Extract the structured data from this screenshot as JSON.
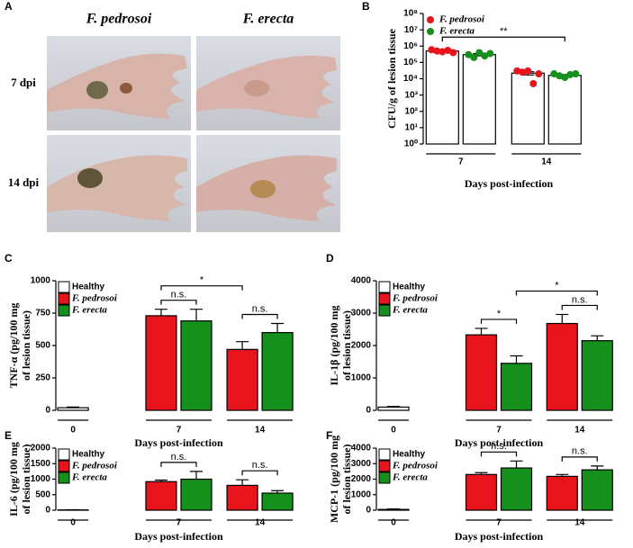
{
  "panel_a": {
    "label": "A",
    "columns": [
      "F. pedrosoi",
      "F. erecta"
    ],
    "rows": [
      "7 dpi",
      "14 dpi"
    ]
  },
  "chart_data": [
    {
      "type": "bar_scatter",
      "panel": "B",
      "ylabel": [
        "CFU/g of lesion tissue"
      ],
      "xlabel": "Days post-infection",
      "categories": [
        "7",
        "14"
      ],
      "log_scale": true,
      "ylim": [
        1,
        100000000
      ],
      "yticks": [
        {
          "value": 1,
          "label": "10⁰"
        },
        {
          "value": 10,
          "label": "10¹"
        },
        {
          "value": 100,
          "label": "10²"
        },
        {
          "value": 1000,
          "label": "10³"
        },
        {
          "value": 10000,
          "label": "10⁴"
        },
        {
          "value": 100000,
          "label": "10⁵"
        },
        {
          "value": 1000000,
          "label": "10⁶"
        },
        {
          "value": 10000000,
          "label": "10⁷"
        },
        {
          "value": 100000000,
          "label": "10⁸"
        }
      ],
      "series": [
        {
          "name": "F. pedrosoi",
          "color": "#e8141b",
          "bar_color": "#ffffff",
          "values": [
            500000,
            22000
          ],
          "errors": [
            40000,
            5000
          ],
          "points": [
            [
              600000,
              500000,
              450000,
              550000,
              400000
            ],
            [
              30000,
              25000,
              30000,
              5000,
              20000
            ]
          ]
        },
        {
          "name": "F. erecta",
          "color": "#16901c",
          "bar_color": "#ffffff",
          "values": [
            300000,
            16000
          ],
          "errors": [
            50000,
            2000
          ],
          "points": [
            [
              300000,
              200000,
              400000,
              250000,
              350000
            ],
            [
              20000,
              15000,
              12000,
              18000,
              20000
            ]
          ]
        }
      ],
      "annotations": [
        {
          "text": "**",
          "from": [
            "F. pedrosoi",
            "7"
          ],
          "to": [
            "F. erecta",
            "14"
          ]
        }
      ]
    },
    {
      "type": "bar",
      "panel": "C",
      "ylabel": [
        "TNF-α (pg/100 mg",
        "of lesion tissue)"
      ],
      "xlabel": "Days post-infection",
      "categories": [
        "0",
        "7",
        "14"
      ],
      "ylim": [
        0,
        1000
      ],
      "yticks": [
        0,
        250,
        500,
        750,
        1000
      ],
      "series": [
        {
          "name": "Healthy",
          "color": "#ffffff",
          "values": [
            20,
            null,
            null
          ],
          "errors": [
            5,
            null,
            null
          ]
        },
        {
          "name": "F. pedrosoi",
          "color": "#e8141b",
          "values": [
            null,
            730,
            470
          ],
          "errors": [
            null,
            50,
            60
          ]
        },
        {
          "name": "F. erecta",
          "color": "#16901c",
          "values": [
            null,
            690,
            600
          ],
          "errors": [
            null,
            90,
            70
          ]
        }
      ],
      "annotations": [
        {
          "text": "n.s.",
          "from": [
            "F. pedrosoi",
            "7"
          ],
          "to": [
            "F. erecta",
            "7"
          ]
        },
        {
          "text": "n.s.",
          "from": [
            "F. pedrosoi",
            "14"
          ],
          "to": [
            "F. erecta",
            "14"
          ]
        },
        {
          "text": "*",
          "from": [
            "F. pedrosoi",
            "7"
          ],
          "to": [
            "F. pedrosoi",
            "14"
          ]
        }
      ]
    },
    {
      "type": "bar",
      "panel": "D",
      "ylabel": [
        "IL-1β (pg/100 mg",
        "of lesion tissue)"
      ],
      "xlabel": "Days post-infection",
      "categories": [
        "0",
        "7",
        "14"
      ],
      "ylim": [
        0,
        4000
      ],
      "yticks": [
        0,
        1000,
        2000,
        3000,
        4000
      ],
      "series": [
        {
          "name": "Healthy",
          "color": "#ffffff",
          "values": [
            100,
            null,
            null
          ],
          "errors": [
            20,
            null,
            null
          ]
        },
        {
          "name": "F. pedrosoi",
          "color": "#e8141b",
          "values": [
            null,
            2330,
            2680
          ],
          "errors": [
            null,
            200,
            280
          ]
        },
        {
          "name": "F. erecta",
          "color": "#16901c",
          "values": [
            null,
            1450,
            2150
          ],
          "errors": [
            null,
            230,
            150
          ]
        }
      ],
      "annotations": [
        {
          "text": "*",
          "from": [
            "F. pedrosoi",
            "7"
          ],
          "to": [
            "F. erecta",
            "7"
          ]
        },
        {
          "text": "n.s.",
          "from": [
            "F. pedrosoi",
            "14"
          ],
          "to": [
            "F. erecta",
            "14"
          ]
        },
        {
          "text": "*",
          "from": [
            "F. erecta",
            "7"
          ],
          "to": [
            "F. erecta",
            "14"
          ]
        }
      ]
    },
    {
      "type": "bar",
      "panel": "E",
      "ylabel": [
        "IL-6 (pg/100 mg",
        "of lesion tissue)"
      ],
      "xlabel": "Days post-infection",
      "categories": [
        "0",
        "7",
        "14"
      ],
      "ylim": [
        0,
        2000
      ],
      "yticks": [
        0,
        500,
        1000,
        1500,
        2000
      ],
      "series": [
        {
          "name": "Healthy",
          "color": "#ffffff",
          "values": [
            10,
            null,
            null
          ],
          "errors": [
            5,
            null,
            null
          ]
        },
        {
          "name": "F. pedrosoi",
          "color": "#e8141b",
          "values": [
            null,
            920,
            800
          ],
          "errors": [
            null,
            50,
            180
          ]
        },
        {
          "name": "F. erecta",
          "color": "#16901c",
          "values": [
            null,
            1000,
            550
          ],
          "errors": [
            null,
            250,
            80
          ]
        }
      ],
      "annotations": [
        {
          "text": "n.s.",
          "from": [
            "F. pedrosoi",
            "7"
          ],
          "to": [
            "F. erecta",
            "7"
          ]
        },
        {
          "text": "n.s.",
          "from": [
            "F. pedrosoi",
            "14"
          ],
          "to": [
            "F. erecta",
            "14"
          ]
        }
      ]
    },
    {
      "type": "bar",
      "panel": "F",
      "ylabel": [
        "MCP-1 (pg/100 mg",
        "of lesion tissue)"
      ],
      "xlabel": "Days post-infection",
      "categories": [
        "0",
        "7",
        "14"
      ],
      "ylim": [
        0,
        4000
      ],
      "yticks": [
        0,
        1000,
        2000,
        3000,
        4000
      ],
      "series": [
        {
          "name": "Healthy",
          "color": "#ffffff",
          "values": [
            50,
            null,
            null
          ],
          "errors": [
            30,
            null,
            null
          ]
        },
        {
          "name": "F. pedrosoi",
          "color": "#e8141b",
          "values": [
            null,
            2300,
            2180
          ],
          "errors": [
            null,
            120,
            120
          ]
        },
        {
          "name": "F. erecta",
          "color": "#16901c",
          "values": [
            null,
            2720,
            2600
          ],
          "errors": [
            null,
            450,
            250
          ]
        }
      ],
      "annotations": [
        {
          "text": "n.s.",
          "from": [
            "F. pedrosoi",
            "7"
          ],
          "to": [
            "F. erecta",
            "7"
          ]
        },
        {
          "text": "n.s.",
          "from": [
            "F. pedrosoi",
            "14"
          ],
          "to": [
            "F. erecta",
            "14"
          ]
        }
      ]
    }
  ]
}
